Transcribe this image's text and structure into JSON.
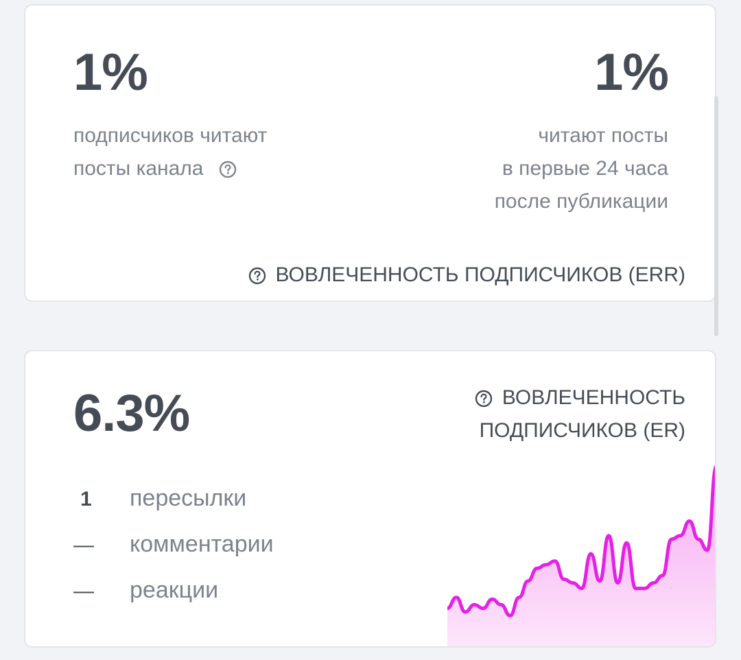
{
  "err_card": {
    "left_value": "1%",
    "left_desc_line1": "подписчиков читают",
    "left_desc_line2": "посты канала",
    "right_value": "1%",
    "right_desc_line1": "читают посты",
    "right_desc_line2": "в первые 24 часа",
    "right_desc_line3": "после публикации",
    "footer_label": "ВОВЛЕЧЕННОСТЬ ПОДПИСЧИКОВ (ERR)"
  },
  "er_card": {
    "value": "6.3%",
    "title_line1": "ВОВЛЕЧЕННОСТЬ",
    "title_line2": "ПОДПИСЧИКОВ (ER)",
    "stats": [
      {
        "value": "1",
        "label": "пересылки"
      },
      {
        "value": "—",
        "label": "комментарии"
      },
      {
        "value": "—",
        "label": "реакции"
      }
    ]
  },
  "sparkline": {
    "color": "#e620e6",
    "fill_top": "#f6a8f3",
    "fill_bottom": "#fde6fb",
    "values": [
      22,
      28,
      20,
      24,
      22,
      27,
      24,
      18,
      28,
      37,
      44,
      46,
      48,
      38,
      36,
      33,
      52,
      37,
      62,
      36,
      58,
      33,
      33,
      36,
      40,
      60,
      62,
      70,
      60,
      54,
      100
    ]
  }
}
